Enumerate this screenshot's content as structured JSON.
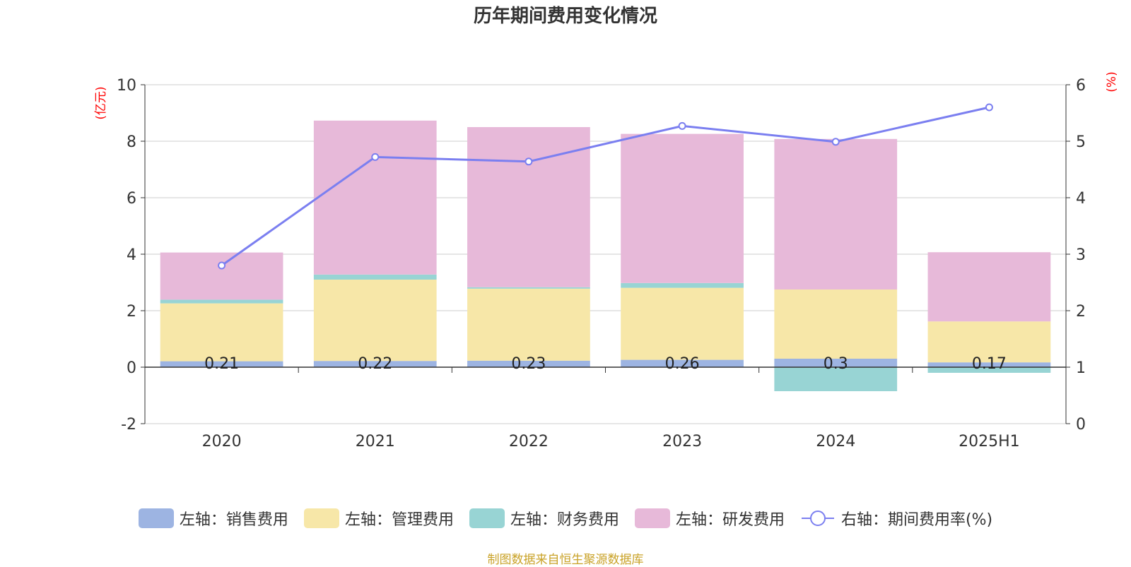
{
  "chart_data": {
    "type": "bar",
    "title": "历年期间费用变化情况",
    "categories": [
      "2020",
      "2021",
      "2022",
      "2023",
      "2024",
      "2025H1"
    ],
    "y_left_label": "(亿元)",
    "y_right_label": "(%)",
    "y_left_lim": [
      -2,
      10
    ],
    "y_left_ticks": [
      "-2",
      "0",
      "2",
      "4",
      "6",
      "8",
      "10"
    ],
    "y_right_lim": [
      0,
      6
    ],
    "y_right_ticks": [
      "0",
      "1",
      "2",
      "3",
      "4",
      "5",
      "6"
    ],
    "stacked": true,
    "grid": true,
    "legend_position": "bottom",
    "series": [
      {
        "name": "左轴：销售费用",
        "axis": "left",
        "type": "bar",
        "color": "#9db4e2",
        "values": [
          0.21,
          0.22,
          0.23,
          0.26,
          0.3,
          0.17
        ]
      },
      {
        "name": "左轴：管理费用",
        "axis": "left",
        "type": "bar",
        "color": "#f7e7a8",
        "values": [
          2.05,
          2.88,
          2.55,
          2.55,
          2.45,
          1.45
        ]
      },
      {
        "name": "左轴：财务费用",
        "axis": "left",
        "type": "bar",
        "color": "#98d4d4",
        "values": [
          0.13,
          0.18,
          0.05,
          0.17,
          -0.85,
          -0.2
        ]
      },
      {
        "name": "左轴：研发费用",
        "axis": "left",
        "type": "bar",
        "color": "#e7b9d9",
        "values": [
          1.67,
          5.45,
          5.67,
          5.28,
          5.33,
          2.45
        ]
      },
      {
        "name": "右轴：期间费用率(%)",
        "axis": "right",
        "type": "line",
        "color": "#7b7ff0",
        "values": [
          2.8,
          4.72,
          4.64,
          5.27,
          4.99,
          5.6
        ]
      }
    ],
    "data_labels": [
      "0.21",
      "0.22",
      "0.23",
      "0.26",
      "0.3",
      "0.17"
    ]
  },
  "source_note": "制图数据来自恒生聚源数据库"
}
